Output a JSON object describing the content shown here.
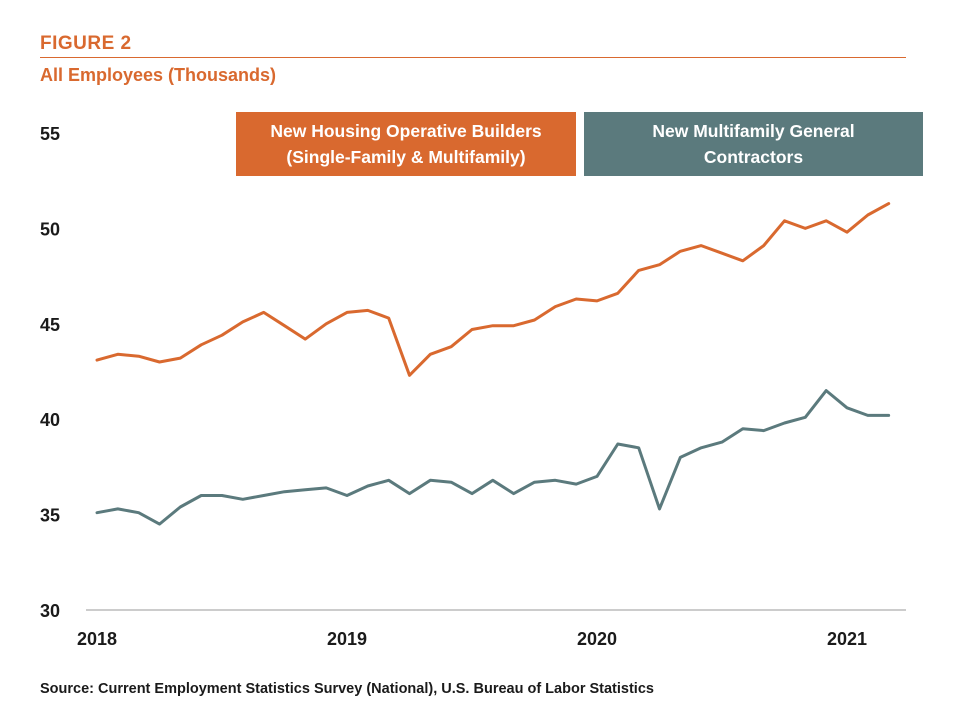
{
  "header": {
    "figure_label": "FIGURE 2",
    "subtitle": "All Employees (Thousands)"
  },
  "legend": [
    {
      "lines": [
        "New Housing Operative Builders",
        "(Single-Family & Multifamily)"
      ],
      "color": "#d9692f"
    },
    {
      "lines": [
        "New Multifamily General",
        "Contractors"
      ],
      "color": "#5b7a7d"
    }
  ],
  "source": "Source: Current Employment Statistics Survey (National), U.S. Bureau of Labor Statistics",
  "chart_data": {
    "type": "line",
    "title": "All Employees (Thousands)",
    "xlabel": "",
    "ylabel": "",
    "ylim": [
      30,
      55
    ],
    "yticks": [
      30,
      35,
      40,
      45,
      50,
      55
    ],
    "xlim": [
      2018.0,
      2021.25
    ],
    "xticks": [
      2018,
      2019,
      2020,
      2021
    ],
    "grid": false,
    "legend_position": "top-right",
    "x": [
      2018.0,
      2018.083,
      2018.167,
      2018.25,
      2018.333,
      2018.417,
      2018.5,
      2018.583,
      2018.667,
      2018.75,
      2018.833,
      2018.917,
      2019.0,
      2019.083,
      2019.167,
      2019.25,
      2019.333,
      2019.417,
      2019.5,
      2019.583,
      2019.667,
      2019.75,
      2019.833,
      2019.917,
      2020.0,
      2020.083,
      2020.167,
      2020.25,
      2020.333,
      2020.417,
      2020.5,
      2020.583,
      2020.667,
      2020.75,
      2020.833,
      2020.917,
      2021.0,
      2021.083,
      2021.167
    ],
    "series": [
      {
        "name": "New Housing Operative Builders (Single-Family & Multifamily)",
        "color": "#d9692f",
        "values": [
          43.1,
          43.4,
          43.3,
          43.0,
          43.2,
          43.9,
          44.4,
          45.1,
          45.6,
          44.9,
          44.2,
          45.0,
          45.6,
          45.7,
          45.3,
          42.3,
          43.4,
          43.8,
          44.7,
          44.9,
          44.9,
          45.2,
          45.9,
          46.3,
          46.2,
          46.6,
          47.8,
          48.1,
          48.8,
          49.1,
          48.7,
          48.3,
          49.1,
          50.4,
          50.0,
          50.4,
          49.8,
          50.7,
          51.3
        ]
      },
      {
        "name": "New Multifamily General Contractors",
        "color": "#5b7a7d",
        "values": [
          35.1,
          35.3,
          35.1,
          34.5,
          35.4,
          36.0,
          36.0,
          35.8,
          36.0,
          36.2,
          36.3,
          36.4,
          36.0,
          36.5,
          36.8,
          36.1,
          36.8,
          36.7,
          36.1,
          36.8,
          36.1,
          36.7,
          36.8,
          36.6,
          37.0,
          38.7,
          38.5,
          35.3,
          38.0,
          38.5,
          38.8,
          39.5,
          39.4,
          39.8,
          40.1,
          41.5,
          40.6,
          40.2,
          40.2
        ]
      }
    ]
  }
}
